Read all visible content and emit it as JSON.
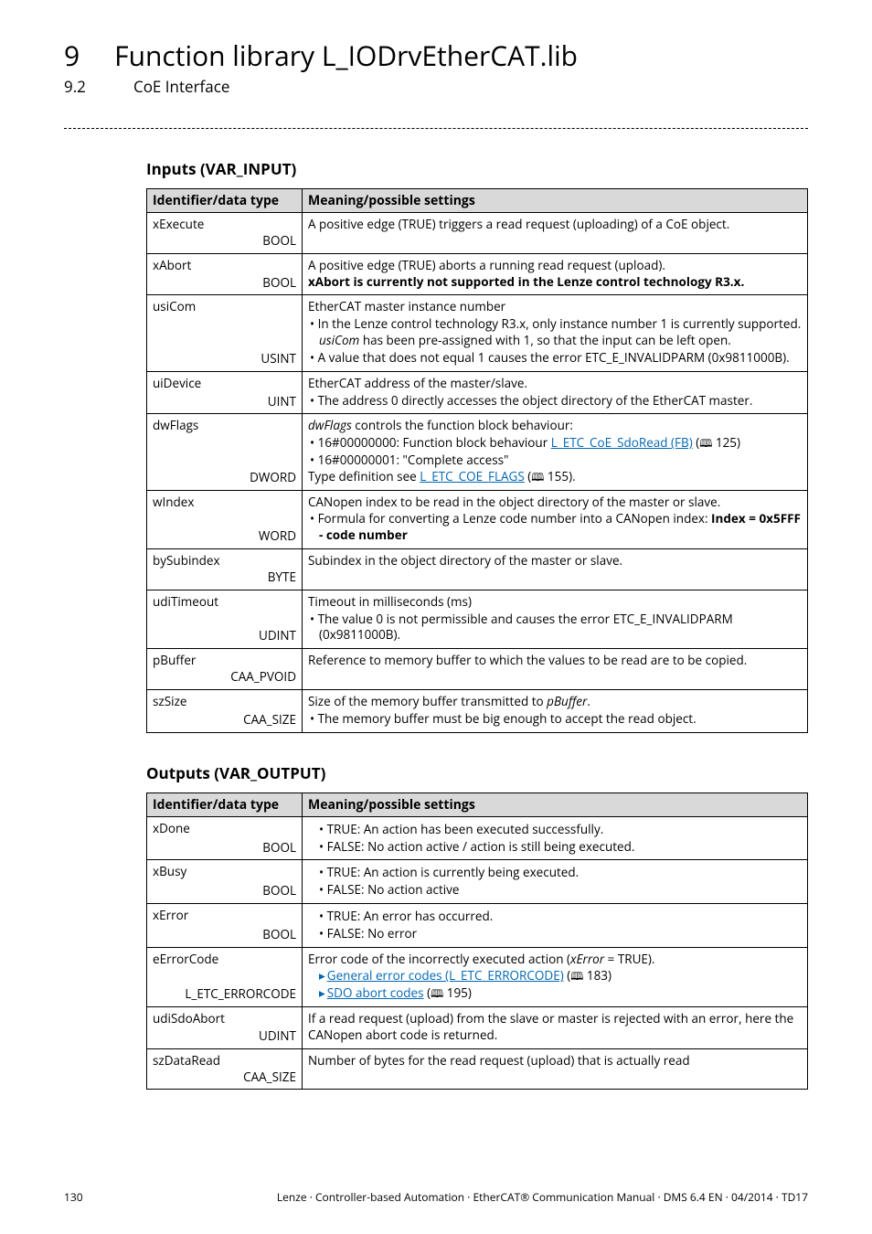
{
  "header": {
    "chapter_num": "9",
    "chapter_title": "Function library L_IODrvEtherCAT.lib",
    "section_num": "9.2",
    "section_title": "CoE Interface"
  },
  "inputs": {
    "heading": "Inputs (VAR_INPUT)",
    "col_id": "Identifier/data type",
    "col_meaning": "Meaning/possible settings",
    "rows": [
      {
        "id": "xExecute",
        "type": "BOOL",
        "lines": [
          {
            "t": "plain",
            "v": "A positive edge (TRUE) triggers a read request (uploading) of a CoE object."
          }
        ]
      },
      {
        "id": "xAbort",
        "type": "BOOL",
        "lines": [
          {
            "t": "plain",
            "v": "A positive edge (TRUE) aborts a running read request (upload)."
          },
          {
            "t": "bold",
            "v": "xAbort is currently not supported in the Lenze control technology R3.x."
          }
        ]
      },
      {
        "id": "usiCom",
        "type": "USINT",
        "lines": [
          {
            "t": "plain",
            "v": "EtherCAT master instance number"
          },
          {
            "t": "bullet",
            "segments": [
              {
                "v": "In the Lenze control technology R3.x, only instance number 1 is currently supported. "
              },
              {
                "v": "usiCom",
                "italic": true
              },
              {
                "v": " has been pre-assigned with 1,  so that the input can be left open."
              }
            ]
          },
          {
            "t": "bullet",
            "v": "A value that does not equal 1 causes the error ETC_E_INVALIDPARM (0x9811000B)."
          }
        ]
      },
      {
        "id": "uiDevice",
        "type": "UINT",
        "lines": [
          {
            "t": "plain",
            "v": "EtherCAT address of the master/slave."
          },
          {
            "t": "bullet",
            "v": "The address 0 directly accesses the object directory of the EtherCAT master."
          }
        ]
      },
      {
        "id": "dwFlags",
        "type": "DWORD",
        "lines": [
          {
            "t": "segments",
            "segments": [
              {
                "v": "dwFlags",
                "italic": true
              },
              {
                "v": " controls the function block behaviour:"
              }
            ]
          },
          {
            "t": "bullet",
            "segments": [
              {
                "v": "16#00000000: Function block behaviour "
              },
              {
                "v": "L_ETC_CoE_SdoRead (FB)",
                "link": true
              },
              {
                "v": " ("
              },
              {
                "v": "📖",
                "book": true
              },
              {
                "v": " 125)"
              }
            ]
          },
          {
            "t": "bullet",
            "v": "16#00000001: \"Complete access\""
          },
          {
            "t": "segments",
            "segments": [
              {
                "v": "Type definition see "
              },
              {
                "v": "L_ETC_COE_FLAGS",
                "link": true
              },
              {
                "v": " ("
              },
              {
                "v": "📖",
                "book": true
              },
              {
                "v": " 155)."
              }
            ]
          }
        ]
      },
      {
        "id": "wIndex",
        "type": "WORD",
        "lines": [
          {
            "t": "plain",
            "v": "CANopen index to be read in the object directory of the master or slave."
          },
          {
            "t": "bullet",
            "segments": [
              {
                "v": "Formula for converting a Lenze code number into a CANopen index: "
              },
              {
                "v": "Index = 0x5FFF - code number",
                "bold": true
              }
            ]
          }
        ]
      },
      {
        "id": "bySubindex",
        "type": "BYTE",
        "lines": [
          {
            "t": "plain",
            "v": "Subindex in the object directory of the master or slave."
          }
        ]
      },
      {
        "id": "udiTimeout",
        "type": "UDINT",
        "lines": [
          {
            "t": "plain",
            "v": "Timeout in milliseconds (ms)"
          },
          {
            "t": "bullet",
            "v": "The value 0 is not permissible and causes the error ETC_E_INVALIDPARM (0x9811000B)."
          }
        ]
      },
      {
        "id": "pBuffer",
        "type": "CAA_PVOID",
        "lines": [
          {
            "t": "plain",
            "v": "Reference to memory buffer to which the values to be read are to be copied."
          }
        ]
      },
      {
        "id": "szSize",
        "type": "CAA_SIZE",
        "lines": [
          {
            "t": "segments",
            "segments": [
              {
                "v": "Size of the memory buffer transmitted to "
              },
              {
                "v": "pBuffer",
                "italic": true
              },
              {
                "v": "."
              }
            ]
          },
          {
            "t": "bullet",
            "v": "The memory buffer must be big enough to accept the read object."
          }
        ]
      }
    ]
  },
  "outputs": {
    "heading": "Outputs (VAR_OUTPUT)",
    "col_id": "Identifier/data type",
    "col_meaning": "Meaning/possible settings",
    "rows": [
      {
        "id": "xDone",
        "type": "BOOL",
        "lines": [
          {
            "t": "bulleti",
            "v": "TRUE: An action has been executed successfully."
          },
          {
            "t": "bulleti",
            "v": "FALSE: No action active / action is still being executed."
          }
        ]
      },
      {
        "id": "xBusy",
        "type": "BOOL",
        "lines": [
          {
            "t": "bulleti",
            "v": "TRUE: An action is currently being executed."
          },
          {
            "t": "bulleti",
            "v": "FALSE: No action active"
          }
        ]
      },
      {
        "id": "xError",
        "type": "BOOL",
        "lines": [
          {
            "t": "bulleti",
            "v": "TRUE: An error has occurred."
          },
          {
            "t": "bulleti",
            "v": "FALSE: No error"
          }
        ]
      },
      {
        "id": "eErrorCode",
        "type": "L_ETC_ERRORCODE",
        "lines": [
          {
            "t": "segments",
            "segments": [
              {
                "v": "Error code of the incorrectly executed action ("
              },
              {
                "v": "xError",
                "italic": true
              },
              {
                "v": " = TRUE)."
              }
            ]
          },
          {
            "t": "arrowlink",
            "segments": [
              {
                "v": "General error codes (L_ETC_ERRORCODE)",
                "link": true
              },
              {
                "v": " ("
              },
              {
                "v": "📖",
                "book": true
              },
              {
                "v": " 183)"
              }
            ]
          },
          {
            "t": "arrowlink",
            "segments": [
              {
                "v": "SDO abort codes",
                "link": true
              },
              {
                "v": " ("
              },
              {
                "v": "📖",
                "book": true
              },
              {
                "v": " 195)"
              }
            ]
          }
        ]
      },
      {
        "id": "udiSdoAbort",
        "type": "UDINT",
        "lines": [
          {
            "t": "plain",
            "v": "If a read request (upload) from the slave or master is rejected with an error, here the CANopen abort code is returned."
          }
        ]
      },
      {
        "id": "szDataRead",
        "type": "CAA_SIZE",
        "lines": [
          {
            "t": "plain",
            "v": "Number of bytes for the read request (upload) that is actually read"
          }
        ]
      }
    ]
  },
  "footer": {
    "page": "130",
    "right": "Lenze · Controller-based Automation · EtherCAT® Communication Manual · DMS 6.4 EN · 04/2014 · TD17"
  }
}
